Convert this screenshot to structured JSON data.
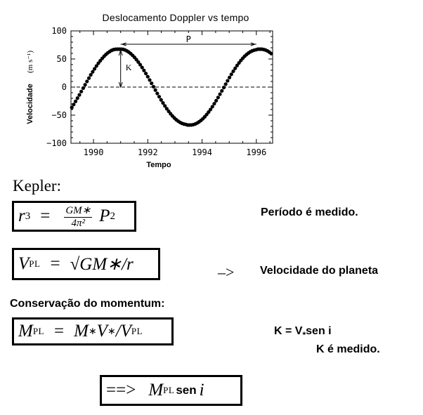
{
  "chart_data": {
    "type": "scatter",
    "title": "Deslocamento Doppler vs tempo",
    "xlabel": "Tempo",
    "ylabel": "Velocidade",
    "ylabel_units": "(m s⁻¹)",
    "xlim": [
      1989.17,
      1996.6
    ],
    "ylim": [
      -100,
      100
    ],
    "xticks": [
      1990,
      1992,
      1994,
      1996
    ],
    "xtick_labels": [
      "1990",
      "1992",
      "1994",
      "1996"
    ],
    "yticks": [
      100,
      50,
      0,
      -50,
      -100
    ],
    "ytick_labels": [
      "100",
      "50",
      "0",
      "−50",
      "−100"
    ],
    "grid": false,
    "zero_line": "dashed",
    "model": {
      "amplitude_K": 67.5,
      "period_P_years": 5.2,
      "peak_time": 1991.0
    },
    "annotations": [
      {
        "label": "P",
        "type": "double-arrow-horizontal",
        "x_from": 1991.0,
        "x_to": 1996.0,
        "y": 76
      },
      {
        "label": "K",
        "type": "double-arrow-vertical",
        "x": 1991.0,
        "y_from": 0,
        "y_to": 67.5
      }
    ],
    "x": [
      1989.2,
      1989.27,
      1989.34,
      1989.41,
      1989.48,
      1989.55,
      1989.62,
      1989.69,
      1989.76,
      1989.83,
      1989.9,
      1989.97,
      1990.04,
      1990.11,
      1990.18,
      1990.25,
      1990.32,
      1990.39,
      1990.46,
      1990.53,
      1990.6,
      1990.67,
      1990.74,
      1990.81,
      1990.88,
      1990.95,
      1991.02,
      1991.09,
      1991.16,
      1991.23,
      1991.3,
      1991.37,
      1991.44,
      1991.51,
      1991.58,
      1991.65,
      1991.72,
      1991.79,
      1991.86,
      1991.93,
      1992.0,
      1992.07,
      1992.14,
      1992.21,
      1992.28,
      1992.35,
      1992.42,
      1992.49,
      1992.56,
      1992.63,
      1992.7,
      1992.77,
      1992.84,
      1992.91,
      1992.98,
      1993.05,
      1993.12,
      1993.19,
      1993.26,
      1993.33,
      1993.4,
      1993.47,
      1993.54,
      1993.61,
      1993.68,
      1993.75,
      1993.82,
      1993.89,
      1993.96,
      1994.03,
      1994.1,
      1994.17,
      1994.24,
      1994.31,
      1994.38,
      1994.45,
      1994.52,
      1994.59,
      1994.66,
      1994.73,
      1994.8,
      1994.87,
      1994.94,
      1995.01,
      1995.08,
      1995.15,
      1995.22,
      1995.29,
      1995.36,
      1995.43,
      1995.5,
      1995.57,
      1995.64,
      1995.71,
      1995.78,
      1995.85,
      1995.92,
      1995.99,
      1996.06,
      1996.13,
      1996.2,
      1996.27,
      1996.34,
      1996.41,
      1996.48,
      1996.55
    ],
    "y": [
      -36.4,
      -31.0,
      -25.5,
      -19.7,
      -13.9,
      -7.9,
      -1.9,
      4.1,
      10.1,
      15.9,
      21.7,
      27.2,
      32.5,
      37.6,
      42.4,
      46.9,
      51.0,
      54.8,
      58.1,
      61.0,
      63.4,
      65.3,
      66.7,
      67.3,
      67.5,
      67.5,
      67.5,
      67.2,
      66.1,
      64.4,
      62.3,
      59.6,
      56.5,
      53.0,
      49.0,
      44.6,
      39.9,
      34.9,
      29.6,
      24.1,
      18.5,
      12.6,
      6.7,
      0.7,
      -5.3,
      -11.3,
      -17.1,
      -22.8,
      -28.3,
      -33.5,
      -38.5,
      -43.2,
      -47.5,
      -51.5,
      -55.0,
      -58.1,
      -60.7,
      -62.9,
      -64.6,
      -65.8,
      -66.5,
      -67.5,
      -67.5,
      -67.4,
      -66.8,
      -65.7,
      -64.0,
      -61.9,
      -59.3,
      -56.3,
      -52.8,
      -48.8,
      -44.5,
      -39.9,
      -34.9,
      -29.6,
      -24.2,
      -18.5,
      -12.7,
      -6.8,
      -0.8,
      5.2,
      11.2,
      17.0,
      22.7,
      28.2,
      33.4,
      38.4,
      43.0,
      47.4,
      51.3,
      54.9,
      58.0,
      60.6,
      62.8,
      64.5,
      65.7,
      66.5,
      67.5,
      67.5,
      67.5,
      66.9,
      65.9,
      64.3,
      62.2,
      59.6
    ]
  },
  "chart": {
    "title": "Deslocamento Doppler vs tempo",
    "xlabel": "Tempo",
    "ylabel": "Velocidade",
    "ylabel_units": "(m s⁻¹)",
    "annotation_P": "P",
    "annotation_K": "K"
  },
  "kepler": {
    "heading": "Kepler:",
    "eq1": {
      "lhs": "r",
      "lhs_exp": "3",
      "eq": "=",
      "num": "GM∗",
      "den": "4π²",
      "rhs": "P",
      "rhs_exp": "2"
    },
    "note1": "Período é medido.",
    "eq2": {
      "lhs": "V",
      "lhs_sub": "PL",
      "eq": "=",
      "rhs": "√GM∗/r"
    },
    "arrow": "–>",
    "note2": "Velocidade do planeta"
  },
  "momentum": {
    "heading": "Conservação do momentum:",
    "eq3": {
      "lhs": "M",
      "lhs_sub": "PL",
      "eq": "=",
      "rhs_a": "M",
      "star1": "∗",
      "rhs_b": "V",
      "star2": "∗",
      "rhs_c": "/V",
      "rhs_sub": "PL"
    },
    "k_eq": {
      "pre": "K = V",
      "star": "*",
      "post": "sen i"
    },
    "k_note": "K  é medido."
  },
  "result": {
    "arrow": "==>",
    "m": "M",
    "sub": "PL",
    "sen": "sen",
    "i": "i"
  }
}
